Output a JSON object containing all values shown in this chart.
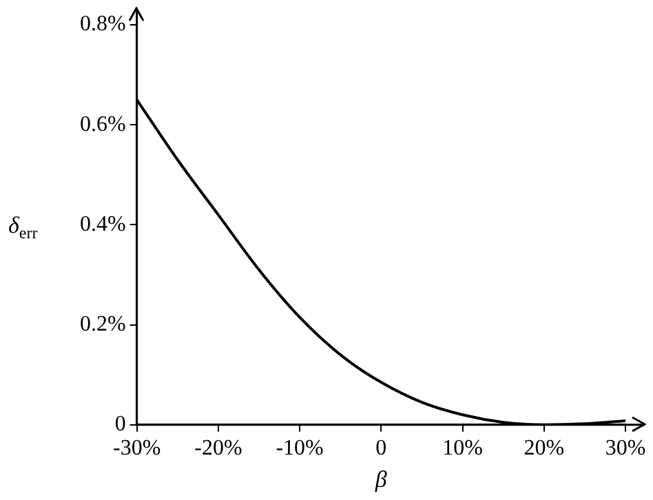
{
  "chart_data": {
    "type": "line",
    "xlabel": "β",
    "ylabel": "δ$_{err}$",
    "x": [
      -30,
      -25,
      -20,
      -15,
      -10,
      -5,
      0,
      5,
      10,
      15,
      20,
      25,
      30
    ],
    "series": [
      {
        "color": "#000000",
        "values": [
          0.65,
          0.53,
          0.42,
          0.31,
          0.215,
          0.14,
          0.085,
          0.045,
          0.02,
          0.005,
          0,
          0.002,
          0.008
        ]
      }
    ],
    "xlim": [
      -30,
      30
    ],
    "xticks": [
      {
        "value": -30,
        "label": "-30%"
      },
      {
        "value": -20,
        "label": "-20%"
      },
      {
        "value": -10,
        "label": "-10%"
      },
      0,
      {
        "value": 10,
        "label": "10%"
      },
      {
        "value": 20,
        "label": "20%"
      },
      {
        "value": 30,
        "label": "30%"
      }
    ],
    "ylim": [
      0,
      0.8
    ],
    "yticks": [
      0,
      {
        "value": 0.2,
        "label": "0.2%"
      },
      {
        "value": 0.4,
        "label": "0.4%"
      },
      {
        "value": 0.6,
        "label": "0.6%"
      },
      {
        "value": 0.8,
        "label": "0.8%"
      }
    ],
    "grid": false,
    "legend": false,
    "marker": "none",
    "line_style": "solid"
  }
}
